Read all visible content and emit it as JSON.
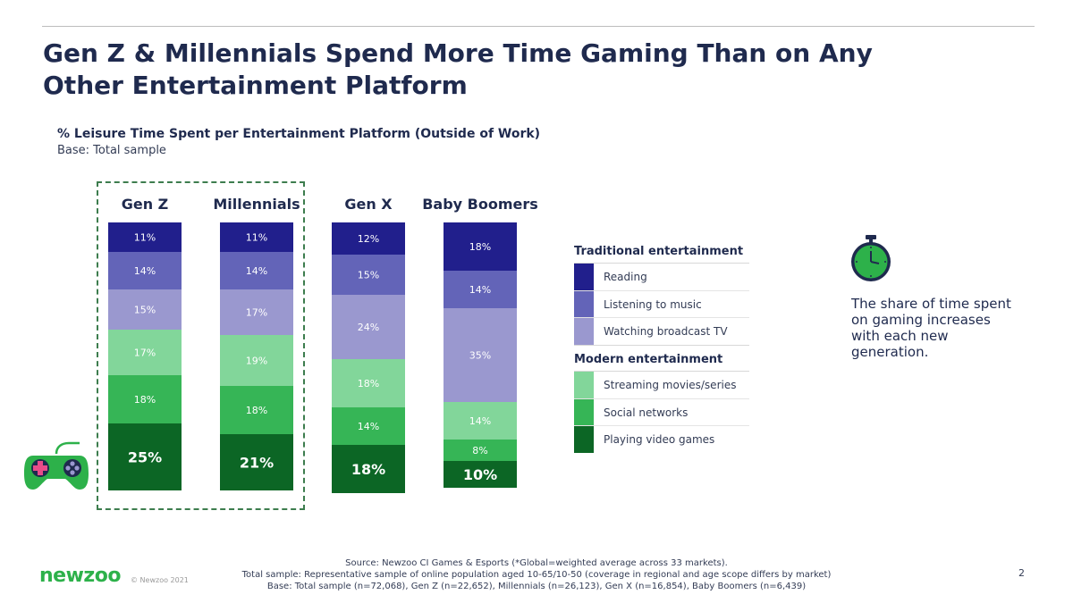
{
  "title": "Gen Z & Millennials Spend More Time Gaming Than on Any Other Entertainment Platform",
  "subtitle": "% Leisure Time Spent per Entertainment Platform (Outside of Work)",
  "base_note": "Base: Total sample",
  "chart_data": {
    "type": "bar",
    "stacked": true,
    "percent_stacked": true,
    "categories": [
      "Gen Z",
      "Millennials",
      "Gen X",
      "Baby Boomers"
    ],
    "series": [
      {
        "name": "Reading",
        "values": [
          11,
          11,
          12,
          18
        ],
        "color": "#211f8c"
      },
      {
        "name": "Listening to music",
        "values": [
          14,
          14,
          15,
          14
        ],
        "color": "#6364b8"
      },
      {
        "name": "Watching broadcast TV",
        "values": [
          15,
          17,
          24,
          35
        ],
        "color": "#9a98cf"
      },
      {
        "name": "Streaming movies/series",
        "values": [
          17,
          19,
          18,
          14
        ],
        "color": "#82d69a"
      },
      {
        "name": "Social networks",
        "values": [
          18,
          18,
          14,
          8
        ],
        "color": "#36b556"
      },
      {
        "name": "Playing video games",
        "values": [
          25,
          21,
          18,
          10
        ],
        "color": "#0c6625"
      }
    ],
    "ylim": [
      0,
      100
    ],
    "highlighted_categories": [
      "Gen Z",
      "Millennials"
    ],
    "legend": {
      "placement": "right",
      "groups": [
        {
          "heading": "Traditional entertainment",
          "items": [
            "Reading",
            "Listening to music",
            "Watching broadcast TV"
          ]
        },
        {
          "heading": "Modern entertainment",
          "items": [
            "Streaming movies/series",
            "Social networks",
            "Playing video games"
          ]
        }
      ]
    }
  },
  "callout": "The share of time spent on gaming increases with each new generation.",
  "icons": {
    "stopwatch": "stopwatch-icon",
    "gamepad": "gamepad-icon"
  },
  "source_lines": [
    "Source: Newzoo CI Games & Esports (*Global=weighted average across 33 markets).",
    "Total sample: Representative sample of online population aged 10-65/10-50 (coverage in regional and age scope differs by market)",
    "Base: Total sample (n=72,068), Gen Z (n=22,652), Millennials (n=26,123), Gen X (n=16,854), Baby Boomers (n=6,439)"
  ],
  "logo": "newzoo",
  "copyright": "© Newzoo 2021",
  "page_number": "2"
}
